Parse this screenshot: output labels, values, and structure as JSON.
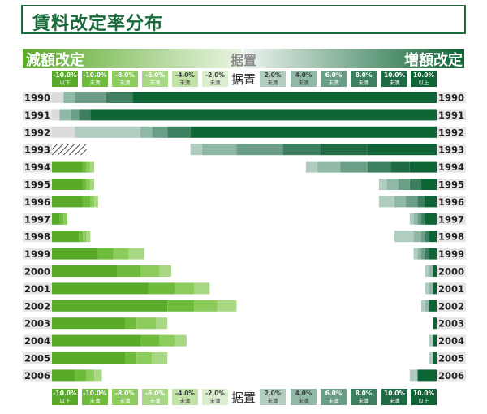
{
  "title": "賃料改定率分布",
  "left_heading": "減額改定",
  "right_heading": "増額改定",
  "center_heading": "据置",
  "colors": {
    "title": "#1a6b3c",
    "decrease": [
      "#5aaa2a",
      "#6fbb3c",
      "#8ccc5c",
      "#a8d884",
      "#c2e3a8",
      "#dceed0"
    ],
    "increase": [
      "#cfe0d8",
      "#b0cdc0",
      "#8fb9a6",
      "#6a9e86",
      "#3c8060",
      "#1f6b44",
      "#0d6435"
    ],
    "year_bg": "#e6e6e6"
  },
  "legend": {
    "decrease": [
      {
        "value": "-10.0%",
        "sub": "以下"
      },
      {
        "value": "-10.0%",
        "sub": "未満"
      },
      {
        "value": "-8.0%",
        "sub": "未満"
      },
      {
        "value": "-6.0%",
        "sub": "未満"
      },
      {
        "value": "-4.0%",
        "sub": "未満"
      },
      {
        "value": "-2.0%",
        "sub": "未満"
      }
    ],
    "center": "据置",
    "increase": [
      {
        "value": "2.0%",
        "sub": "未満"
      },
      {
        "value": "4.0%",
        "sub": "未満"
      },
      {
        "value": "6.0%",
        "sub": "未満"
      },
      {
        "value": "8.0%",
        "sub": "未満"
      },
      {
        "value": "10.0%",
        "sub": "未満"
      },
      {
        "value": "10.0%",
        "sub": "以上"
      }
    ]
  },
  "chart_data": {
    "type": "bar",
    "orientation": "horizontal-diverging",
    "categories": [
      "1990",
      "1991",
      "1992",
      "1993",
      "1994",
      "1995",
      "1996",
      "1997",
      "1998",
      "1999",
      "2000",
      "2001",
      "2002",
      "2003",
      "2004",
      "2005",
      "2006"
    ],
    "decrease_bins": [
      "-10.0%以下",
      "-10.0%未満",
      "-8.0%未満",
      "-6.0%未満",
      "-4.0%未満",
      "-2.0%未満"
    ],
    "increase_bins": [
      "2.0%未満",
      "4.0%未満",
      "6.0%未満",
      "8.0%未満",
      "10.0%未満",
      "10.0%以上"
    ],
    "unit": "share of cases (%)",
    "rows": [
      {
        "year": "1990",
        "decrease": [
          0,
          0,
          0,
          0,
          0,
          0
        ],
        "freeze": 3,
        "increase": [
          0,
          3,
          8,
          7,
          0,
          79
        ],
        "hatched": false
      },
      {
        "year": "1991",
        "decrease": [
          0,
          0,
          0,
          0,
          0,
          0
        ],
        "freeze": 2,
        "increase": [
          0,
          3,
          2,
          3,
          0,
          90
        ],
        "hatched": false
      },
      {
        "year": "1992",
        "decrease": [
          0,
          0,
          0,
          0,
          0,
          0
        ],
        "freeze": 6,
        "increase": [
          17,
          3,
          4,
          6,
          0,
          64
        ],
        "hatched": false
      },
      {
        "year": "1993",
        "decrease": [
          9,
          0,
          0,
          0,
          0,
          0
        ],
        "freeze": 0,
        "increase": [
          3,
          9,
          12,
          10,
          12,
          18
        ],
        "hatched": true
      },
      {
        "year": "1994",
        "decrease": [
          8,
          1,
          1,
          1,
          0,
          0
        ],
        "freeze": 0,
        "increase": [
          3,
          6,
          7,
          6,
          5,
          7
        ],
        "hatched": false
      },
      {
        "year": "1995",
        "decrease": [
          8,
          1,
          1,
          1,
          0,
          0
        ],
        "freeze": 0,
        "increase": [
          2,
          3,
          3,
          3,
          0,
          4
        ],
        "hatched": false
      },
      {
        "year": "1996",
        "decrease": [
          8,
          2,
          1,
          1,
          0,
          0
        ],
        "freeze": 0,
        "increase": [
          4,
          3,
          3,
          2,
          0,
          3
        ],
        "hatched": false
      },
      {
        "year": "1997",
        "decrease": [
          2,
          1,
          1,
          0,
          0,
          0
        ],
        "freeze": 0,
        "increase": [
          1,
          1,
          1,
          1,
          0,
          3
        ],
        "hatched": false
      },
      {
        "year": "1998",
        "decrease": [
          7,
          1,
          1,
          1,
          0,
          0
        ],
        "freeze": 0,
        "increase": [
          5,
          2,
          1,
          1,
          0,
          2
        ],
        "hatched": false
      },
      {
        "year": "1999",
        "decrease": [
          12,
          4,
          4,
          4,
          0,
          0
        ],
        "freeze": 0,
        "increase": [
          1,
          1,
          1,
          1,
          0,
          2
        ],
        "hatched": false
      },
      {
        "year": "2000",
        "decrease": [
          17,
          6,
          5,
          3,
          0,
          0
        ],
        "freeze": 0,
        "increase": [
          1,
          1,
          0,
          0,
          0,
          1
        ],
        "hatched": false
      },
      {
        "year": "2001",
        "decrease": [
          25,
          7,
          5,
          4,
          0,
          0
        ],
        "freeze": 0,
        "increase": [
          1,
          1,
          0,
          0,
          0,
          1
        ],
        "hatched": false
      },
      {
        "year": "2002",
        "decrease": [
          30,
          7,
          6,
          5,
          0,
          0
        ],
        "freeze": 0,
        "increase": [
          1,
          1,
          0,
          0,
          0,
          2
        ],
        "hatched": false
      },
      {
        "year": "2003",
        "decrease": [
          19,
          3,
          5,
          3,
          0,
          0
        ],
        "freeze": 0,
        "increase": [
          0,
          0,
          0,
          0,
          0,
          1
        ],
        "hatched": false
      },
      {
        "year": "2004",
        "decrease": [
          23,
          5,
          4,
          3,
          0,
          0
        ],
        "freeze": 0,
        "increase": [
          1,
          0,
          0,
          0,
          0,
          1
        ],
        "hatched": false
      },
      {
        "year": "2005",
        "decrease": [
          19,
          3,
          4,
          4,
          0,
          0
        ],
        "freeze": 0,
        "increase": [
          1,
          0,
          0,
          0,
          0,
          1
        ],
        "hatched": false
      },
      {
        "year": "2006",
        "decrease": [
          6,
          3,
          2,
          2,
          0,
          0
        ],
        "freeze": 0,
        "increase": [
          2,
          0,
          0,
          0,
          0,
          5
        ],
        "hatched": false
      }
    ]
  }
}
